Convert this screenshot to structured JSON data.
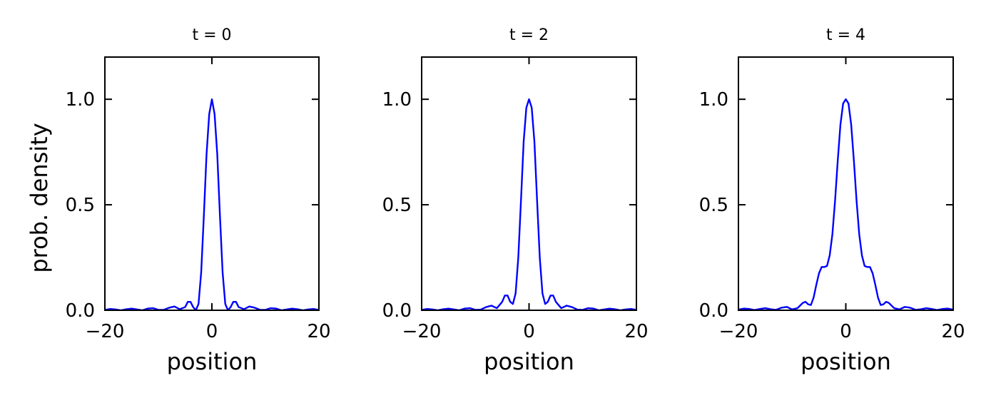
{
  "chart_data": [
    {
      "type": "line",
      "title": "t = 0",
      "xlabel": "position",
      "ylabel": "prob. density",
      "xlim": [
        -20,
        20
      ],
      "ylim": [
        0,
        1.2
      ],
      "xticks": [
        -20,
        0,
        20
      ],
      "xtick_labels": [
        "−20",
        "0",
        "20"
      ],
      "yticks": [
        0,
        0.5,
        1
      ],
      "ytick_labels": [
        "0.0",
        "0.5",
        "1.0"
      ],
      "tick_direction": "in",
      "grid": false,
      "line_color": "#0000ff",
      "series": [
        {
          "x": [
            -20,
            -19,
            -18,
            -17,
            -16,
            -15,
            -14,
            -13,
            -12,
            -11,
            -10,
            -9,
            -8,
            -7,
            -6,
            -5,
            -4.5,
            -4,
            -3.5,
            -3,
            -2.5,
            -2,
            -1.5,
            -1,
            -0.5,
            0,
            0.5,
            1,
            1.5,
            2,
            2.5,
            3,
            3.5,
            4,
            4.5,
            5,
            6,
            7,
            8,
            9,
            10,
            11,
            12,
            13,
            14,
            15,
            16,
            17,
            18,
            19,
            20
          ],
          "y": [
            0.002,
            0.006,
            0.004,
            0.0,
            0.005,
            0.008,
            0.004,
            0.0,
            0.008,
            0.01,
            0.002,
            0.002,
            0.012,
            0.018,
            0.005,
            0.015,
            0.04,
            0.04,
            0.015,
            0.0,
            0.03,
            0.18,
            0.45,
            0.74,
            0.93,
            1.0,
            0.93,
            0.74,
            0.45,
            0.18,
            0.03,
            0.0,
            0.015,
            0.04,
            0.04,
            0.015,
            0.005,
            0.018,
            0.012,
            0.002,
            0.002,
            0.01,
            0.008,
            0.0,
            0.004,
            0.008,
            0.005,
            0.0,
            0.004,
            0.006,
            0.002
          ]
        }
      ]
    },
    {
      "type": "line",
      "title": "t = 2",
      "xlabel": "position",
      "ylabel": "",
      "xlim": [
        -20,
        20
      ],
      "ylim": [
        0,
        1.2
      ],
      "xticks": [
        -20,
        0,
        20
      ],
      "xtick_labels": [
        "−20",
        "0",
        "20"
      ],
      "yticks": [
        0,
        0.5,
        1
      ],
      "ytick_labels": [
        "0.0",
        "0.5",
        "1.0"
      ],
      "tick_direction": "in",
      "grid": false,
      "line_color": "#0000ff",
      "series": [
        {
          "x": [
            -20,
            -19,
            -18,
            -17,
            -16,
            -15,
            -14,
            -13,
            -12,
            -11,
            -10,
            -9,
            -8,
            -7,
            -6,
            -5,
            -4.5,
            -4,
            -3.5,
            -3,
            -2.5,
            -2,
            -1.5,
            -1,
            -0.5,
            0,
            0.5,
            1,
            1.5,
            2,
            2.5,
            3,
            3.5,
            4,
            4.5,
            5,
            6,
            7,
            8,
            9,
            10,
            11,
            12,
            13,
            14,
            15,
            16,
            17,
            18,
            19,
            20
          ],
          "y": [
            0.002,
            0.006,
            0.004,
            0.0,
            0.005,
            0.008,
            0.004,
            0.0,
            0.008,
            0.01,
            0.002,
            0.003,
            0.015,
            0.022,
            0.01,
            0.04,
            0.07,
            0.07,
            0.04,
            0.03,
            0.08,
            0.25,
            0.52,
            0.8,
            0.96,
            1.0,
            0.96,
            0.8,
            0.52,
            0.25,
            0.08,
            0.03,
            0.04,
            0.07,
            0.07,
            0.04,
            0.01,
            0.022,
            0.015,
            0.003,
            0.002,
            0.01,
            0.008,
            0.0,
            0.004,
            0.008,
            0.005,
            0.0,
            0.004,
            0.006,
            0.002
          ]
        }
      ]
    },
    {
      "type": "line",
      "title": "t = 4",
      "xlabel": "position",
      "ylabel": "",
      "xlim": [
        -20,
        20
      ],
      "ylim": [
        0,
        1.2
      ],
      "xticks": [
        -20,
        0,
        20
      ],
      "xtick_labels": [
        "−20",
        "0",
        "20"
      ],
      "yticks": [
        0,
        0.5,
        1
      ],
      "ytick_labels": [
        "0.0",
        "0.5",
        "1.0"
      ],
      "tick_direction": "in",
      "grid": false,
      "line_color": "#0000ff",
      "series": [
        {
          "x": [
            -20,
            -19,
            -18,
            -17,
            -16,
            -15,
            -14,
            -13,
            -12,
            -11,
            -10,
            -9,
            -8,
            -7.5,
            -7,
            -6.5,
            -6,
            -5.5,
            -5,
            -4.5,
            -4,
            -3.5,
            -3,
            -2.5,
            -2,
            -1.5,
            -1,
            -0.5,
            0,
            0.5,
            1,
            1.5,
            2,
            2.5,
            3,
            3.5,
            4,
            4.5,
            5,
            5.5,
            6,
            6.5,
            7,
            7.5,
            8,
            9,
            10,
            11,
            12,
            13,
            14,
            15,
            16,
            17,
            18,
            19,
            20
          ],
          "y": [
            0.003,
            0.008,
            0.006,
            0.001,
            0.006,
            0.01,
            0.005,
            0.002,
            0.012,
            0.016,
            0.004,
            0.01,
            0.035,
            0.04,
            0.028,
            0.025,
            0.06,
            0.12,
            0.175,
            0.205,
            0.205,
            0.21,
            0.26,
            0.36,
            0.52,
            0.71,
            0.88,
            0.98,
            1.0,
            0.98,
            0.88,
            0.71,
            0.52,
            0.36,
            0.26,
            0.21,
            0.205,
            0.205,
            0.175,
            0.12,
            0.06,
            0.025,
            0.028,
            0.04,
            0.035,
            0.01,
            0.004,
            0.016,
            0.012,
            0.002,
            0.005,
            0.01,
            0.006,
            0.001,
            0.006,
            0.008,
            0.003
          ]
        }
      ]
    }
  ]
}
